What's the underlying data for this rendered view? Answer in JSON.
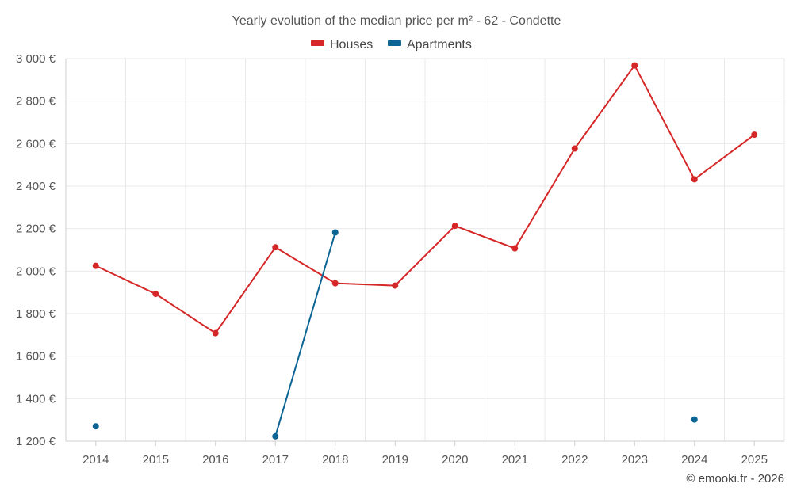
{
  "chart_data": {
    "type": "line",
    "title": "Yearly evolution of the median price per m² - 62 - Condette",
    "x": [
      "2014",
      "2015",
      "2016",
      "2017",
      "2018",
      "2019",
      "2020",
      "2021",
      "2022",
      "2023",
      "2024",
      "2025"
    ],
    "series": [
      {
        "name": "Houses",
        "color": "#d62728",
        "values": [
          2025,
          1893,
          1708,
          2112,
          1943,
          1932,
          2213,
          2107,
          2577,
          2968,
          2432,
          2642
        ]
      },
      {
        "name": "Apartments",
        "color": "#0b6494",
        "values": [
          1270,
          null,
          null,
          1223,
          2182,
          null,
          null,
          null,
          null,
          null,
          1302,
          null
        ]
      }
    ],
    "y_ticks": [
      "1 200 €",
      "1 400 €",
      "1 600 €",
      "1 800 €",
      "2 000 €",
      "2 200 €",
      "2 400 €",
      "2 600 €",
      "2 800 €",
      "3 000 €"
    ],
    "ylim": [
      1200,
      3000
    ],
    "xlabel": "",
    "ylabel": "",
    "legend_position": "top-center",
    "grid": true,
    "credit": "© emooki.fr - 2026"
  }
}
